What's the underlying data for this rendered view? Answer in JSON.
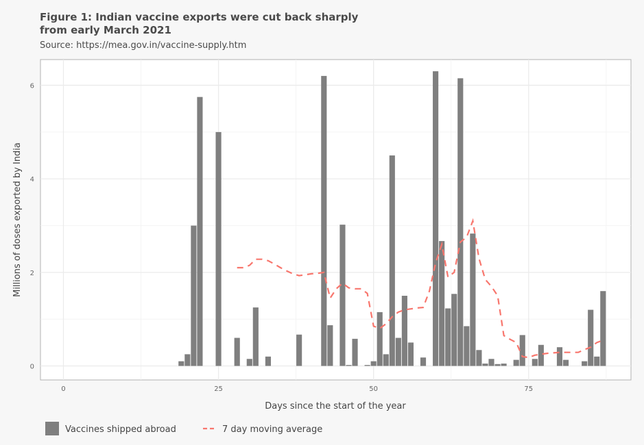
{
  "chart_data": {
    "type": "bar",
    "title_line1": "Figure 1: Indian vaccine exports were cut back sharply",
    "title_line2": "from early March 2021",
    "subtitle": "Source: https://mea.gov.in/vaccine-supply.htm",
    "xlabel": "Days since the start of the year",
    "ylabel": "Millions of doses exported by India",
    "xlim": [
      -3.7,
      91.5
    ],
    "ylim": [
      -0.3,
      6.55
    ],
    "xticks": [
      0,
      25,
      50,
      75
    ],
    "yticks": [
      0,
      2,
      4,
      6
    ],
    "grid": true,
    "legend_position": "bottom",
    "colors": {
      "bars": "#7f7f7f",
      "line": "#f8766d"
    },
    "series": [
      {
        "name": "Vaccines shipped abroad",
        "type": "bar",
        "x": [
          19,
          20,
          21,
          22,
          25,
          28,
          30,
          31,
          33,
          38,
          42,
          43,
          45,
          46,
          47,
          49,
          50,
          51,
          52,
          53,
          54,
          55,
          56,
          58,
          60,
          61,
          62,
          63,
          64,
          65,
          66,
          67,
          68,
          69,
          70,
          71,
          73,
          74,
          76,
          77,
          80,
          81,
          84,
          85,
          86,
          87
        ],
        "values": [
          0.1,
          0.25,
          3.0,
          5.75,
          5.0,
          0.6,
          0.15,
          1.25,
          0.2,
          0.67,
          6.2,
          0.87,
          3.02,
          0.02,
          0.58,
          0.02,
          0.1,
          1.15,
          0.25,
          4.5,
          0.6,
          1.5,
          0.5,
          0.18,
          6.3,
          2.67,
          1.23,
          1.54,
          6.15,
          0.85,
          2.83,
          0.34,
          0.05,
          0.15,
          0.04,
          0.05,
          0.13,
          0.66,
          0.15,
          0.45,
          0.4,
          0.13,
          0.1,
          1.2,
          0.2,
          1.6
        ]
      },
      {
        "name": "7 day moving average",
        "type": "line",
        "x": [
          28,
          29,
          30,
          31,
          32,
          33,
          34,
          35,
          36,
          37,
          38,
          39,
          40,
          41,
          42,
          43,
          44,
          45,
          46,
          47,
          48,
          49,
          50,
          51,
          52,
          53,
          54,
          55,
          56,
          57,
          58,
          59,
          60,
          61,
          62,
          63,
          64,
          65,
          66,
          67,
          68,
          69,
          70,
          71,
          72,
          73,
          74,
          75,
          76,
          77,
          78,
          79,
          80,
          81,
          82,
          83,
          84,
          85,
          86,
          87
        ],
        "values": [
          2.1,
          2.1,
          2.15,
          2.28,
          2.28,
          2.25,
          2.18,
          2.1,
          2.03,
          1.97,
          1.93,
          1.95,
          1.97,
          1.98,
          2.0,
          1.45,
          1.65,
          1.77,
          1.67,
          1.65,
          1.65,
          1.55,
          0.85,
          0.8,
          0.9,
          1.05,
          1.15,
          1.2,
          1.22,
          1.24,
          1.25,
          1.6,
          2.2,
          2.6,
          1.9,
          2.0,
          2.65,
          2.75,
          3.1,
          2.3,
          1.85,
          1.7,
          1.5,
          0.65,
          0.57,
          0.5,
          0.2,
          0.18,
          0.23,
          0.25,
          0.27,
          0.28,
          0.29,
          0.29,
          0.29,
          0.29,
          0.35,
          0.4,
          0.5,
          0.55
        ]
      }
    ]
  }
}
